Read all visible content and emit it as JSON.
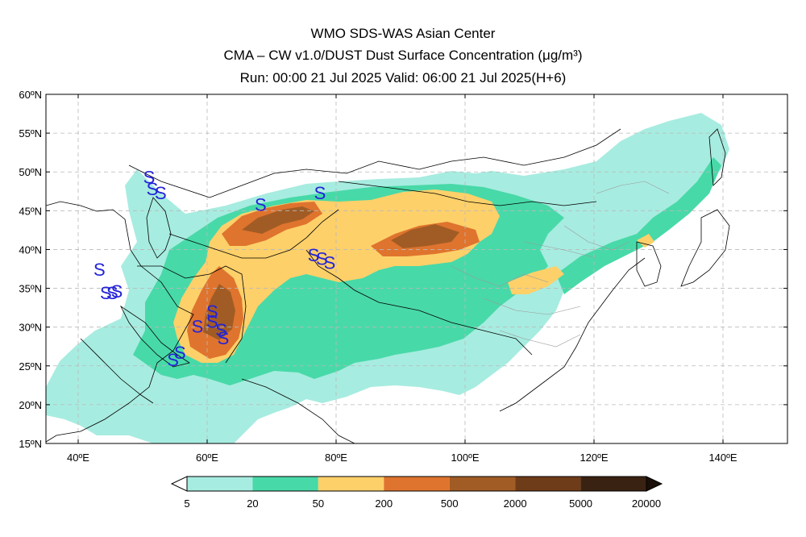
{
  "header": {
    "title_line1": "WMO SDS-WAS Asian Center",
    "title_line2": "CMA – CW v1.0/DUST Dust Surface Concentration (μg/m³)",
    "title_line3": "Run: 00:00 21 Jul 2025     Valid: 06:00 21 Jul 2025(H+6)"
  },
  "map": {
    "lon_range": [
      35,
      150
    ],
    "lat_range": [
      15,
      60
    ],
    "lat_ticks": [
      {
        "v": 60,
        "label": "60ºN"
      },
      {
        "v": 55,
        "label": "55ºN"
      },
      {
        "v": 50,
        "label": "50ºN"
      },
      {
        "v": 45,
        "label": "45ºN"
      },
      {
        "v": 40,
        "label": "40ºN"
      },
      {
        "v": 35,
        "label": "35ºN"
      },
      {
        "v": 30,
        "label": "30ºN"
      },
      {
        "v": 25,
        "label": "25ºN"
      },
      {
        "v": 20,
        "label": "20ºN"
      },
      {
        "v": 15,
        "label": "15ºN"
      }
    ],
    "lon_ticks": [
      {
        "v": 40,
        "label": "40ºE"
      },
      {
        "v": 60,
        "label": "60ºE"
      },
      {
        "v": 80,
        "label": "80ºE"
      },
      {
        "v": 100,
        "label": "100ºE"
      },
      {
        "v": 120,
        "label": "120ºE"
      },
      {
        "v": 140,
        "label": "140ºE"
      }
    ],
    "grid": true,
    "dust_stations": [
      {
        "lon": 51.0,
        "lat": 48.5
      },
      {
        "lon": 51.5,
        "lat": 47.0
      },
      {
        "lon": 52.8,
        "lat": 46.5
      },
      {
        "lon": 68.3,
        "lat": 45.0
      },
      {
        "lon": 77.5,
        "lat": 46.5
      },
      {
        "lon": 76.5,
        "lat": 38.5
      },
      {
        "lon": 77.8,
        "lat": 38.0
      },
      {
        "lon": 79.0,
        "lat": 37.5
      },
      {
        "lon": 43.3,
        "lat": 36.6
      },
      {
        "lon": 44.3,
        "lat": 33.6
      },
      {
        "lon": 45.3,
        "lat": 33.6
      },
      {
        "lon": 46.0,
        "lat": 33.8
      },
      {
        "lon": 60.8,
        "lat": 31.2
      },
      {
        "lon": 60.8,
        "lat": 29.9
      },
      {
        "lon": 58.5,
        "lat": 29.3
      },
      {
        "lon": 62.2,
        "lat": 28.8
      },
      {
        "lon": 62.5,
        "lat": 27.8
      },
      {
        "lon": 55.8,
        "lat": 25.9
      },
      {
        "lon": 54.7,
        "lat": 25.0
      }
    ],
    "station_symbol": "S"
  },
  "legend": {
    "labels": [
      "5",
      "20",
      "50",
      "200",
      "500",
      "2000",
      "5000",
      "20000"
    ],
    "colors": [
      "#a7ece0",
      "#48d9a8",
      "#fdd06a",
      "#df742e",
      "#a15c25",
      "#6f3c19",
      "#3a2212"
    ],
    "under_color": "#ffffff",
    "over_color": "#1a0f08"
  },
  "palette": {
    "land": "#ffffff",
    "dust_5": "#a7ece0",
    "dust_20": "#48d9a8",
    "dust_50": "#fdd06a",
    "dust_200": "#df742e",
    "dust_500": "#a15c25",
    "dust_2000": "#6f3c19",
    "station": "#2323d8"
  }
}
